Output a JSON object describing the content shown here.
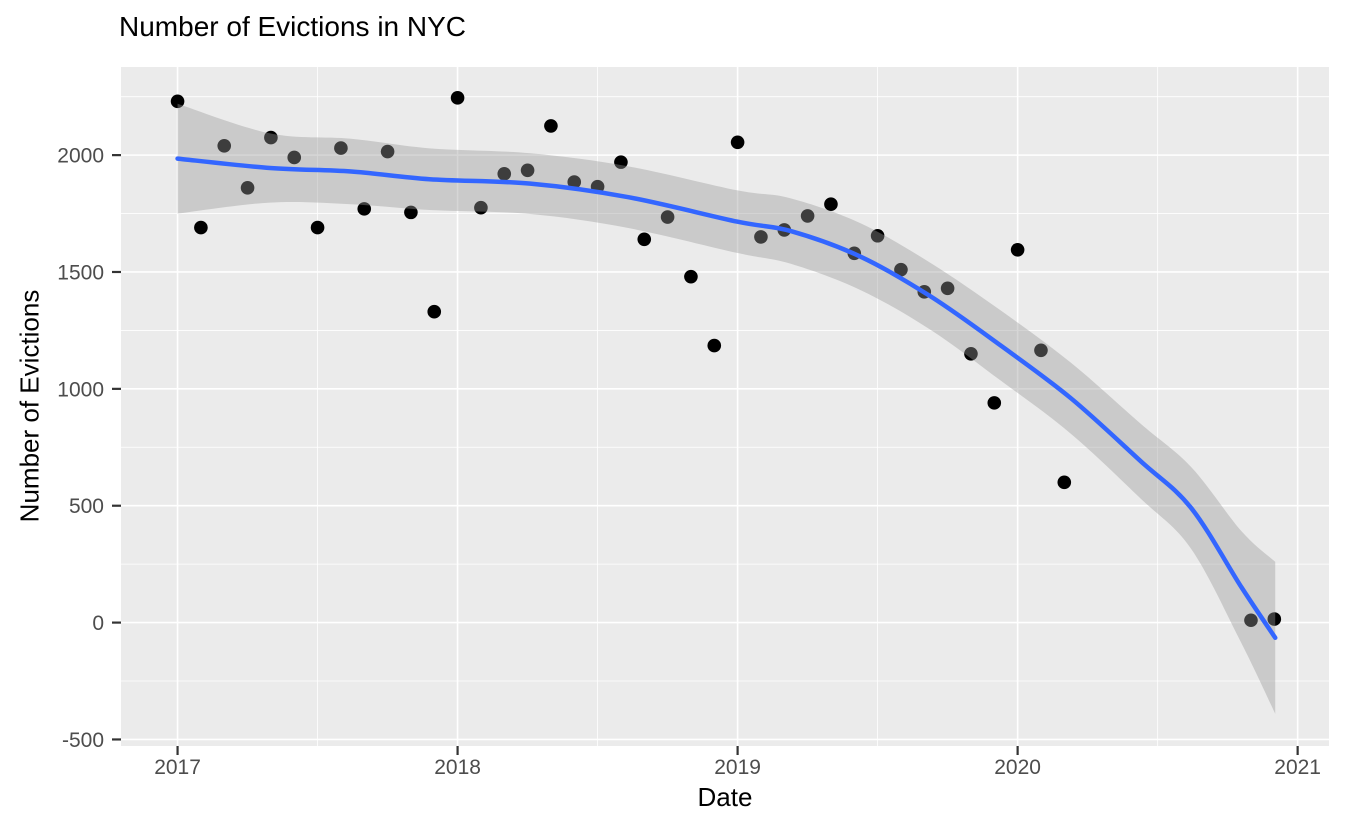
{
  "chart_data": {
    "type": "scatter",
    "title": "Number of Evictions in NYC",
    "xlabel": "Date",
    "ylabel": "Number of Evictions",
    "legend": "none",
    "grid": "white major and minor gridlines on grey panel",
    "x_ticks": [
      2017,
      2018,
      2019,
      2020,
      2021
    ],
    "x_minor_ticks": [
      2017.5,
      2018.5,
      2019.5,
      2020.5
    ],
    "y_ticks": [
      -500,
      0,
      500,
      1000,
      1500,
      2000
    ],
    "y_minor_ticks": [
      -250,
      250,
      750,
      1250,
      1750,
      2250
    ],
    "xlim": [
      2016.798,
      2021.112
    ],
    "ylim": [
      -528,
      2377
    ],
    "points": [
      {
        "date": "2017-01",
        "value": 2230
      },
      {
        "date": "2017-02",
        "value": 1690
      },
      {
        "date": "2017-03",
        "value": 2040
      },
      {
        "date": "2017-04",
        "value": 1860
      },
      {
        "date": "2017-05",
        "value": 2075
      },
      {
        "date": "2017-06",
        "value": 1990
      },
      {
        "date": "2017-07",
        "value": 1690
      },
      {
        "date": "2017-08",
        "value": 2030
      },
      {
        "date": "2017-09",
        "value": 1770
      },
      {
        "date": "2017-10",
        "value": 2015
      },
      {
        "date": "2017-11",
        "value": 1755
      },
      {
        "date": "2017-12",
        "value": 1330
      },
      {
        "date": "2018-01",
        "value": 2245
      },
      {
        "date": "2018-02",
        "value": 1775
      },
      {
        "date": "2018-03",
        "value": 1920
      },
      {
        "date": "2018-04",
        "value": 1935
      },
      {
        "date": "2018-05",
        "value": 2125
      },
      {
        "date": "2018-06",
        "value": 1885
      },
      {
        "date": "2018-07",
        "value": 1865
      },
      {
        "date": "2018-08",
        "value": 1970
      },
      {
        "date": "2018-09",
        "value": 1640
      },
      {
        "date": "2018-10",
        "value": 1735
      },
      {
        "date": "2018-11",
        "value": 1480
      },
      {
        "date": "2018-12",
        "value": 1185
      },
      {
        "date": "2019-01",
        "value": 2055
      },
      {
        "date": "2019-02",
        "value": 1650
      },
      {
        "date": "2019-03",
        "value": 1680
      },
      {
        "date": "2019-04",
        "value": 1740
      },
      {
        "date": "2019-05",
        "value": 1790
      },
      {
        "date": "2019-06",
        "value": 1580
      },
      {
        "date": "2019-07",
        "value": 1655
      },
      {
        "date": "2019-08",
        "value": 1510
      },
      {
        "date": "2019-09",
        "value": 1415
      },
      {
        "date": "2019-10",
        "value": 1430
      },
      {
        "date": "2019-11",
        "value": 1150
      },
      {
        "date": "2019-12",
        "value": 940
      },
      {
        "date": "2020-01",
        "value": 1595
      },
      {
        "date": "2020-02",
        "value": 1165
      },
      {
        "date": "2020-03",
        "value": 600
      },
      {
        "date": "2020-11",
        "value": 10
      },
      {
        "date": "2020-12",
        "value": 15
      }
    ],
    "smooth_line": [
      [
        2017.0,
        1985
      ],
      [
        2017.33,
        1945
      ],
      [
        2017.62,
        1930
      ],
      [
        2017.9,
        1897
      ],
      [
        2018.26,
        1878
      ],
      [
        2018.61,
        1820
      ],
      [
        2019.0,
        1715
      ],
      [
        2019.19,
        1675
      ],
      [
        2019.44,
        1565
      ],
      [
        2019.69,
        1395
      ],
      [
        2019.94,
        1185
      ],
      [
        2020.19,
        960
      ],
      [
        2020.44,
        690
      ],
      [
        2020.62,
        490
      ],
      [
        2020.8,
        150
      ],
      [
        2020.92,
        -65
      ]
    ],
    "confidence_ribbon": [
      [
        2017.0,
        1750,
        2220
      ],
      [
        2017.33,
        1797,
        2093
      ],
      [
        2017.62,
        1790,
        2070
      ],
      [
        2017.9,
        1765,
        2029
      ],
      [
        2018.26,
        1748,
        2008
      ],
      [
        2018.61,
        1688,
        1952
      ],
      [
        2019.0,
        1581,
        1849
      ],
      [
        2019.19,
        1535,
        1815
      ],
      [
        2019.44,
        1422,
        1708
      ],
      [
        2019.69,
        1252,
        1538
      ],
      [
        2019.94,
        1035,
        1335
      ],
      [
        2020.19,
        808,
        1112
      ],
      [
        2020.44,
        530,
        850
      ],
      [
        2020.62,
        315,
        665
      ],
      [
        2020.8,
        -90,
        390
      ],
      [
        2020.92,
        -390,
        260
      ]
    ],
    "colors": {
      "outer_background": "#FFFFFF",
      "panel_background": "#EBEBEB",
      "gridline": "#FFFFFF",
      "point": "#000000",
      "ribbon_fill": "#999999",
      "ribbon_opacity": 0.4,
      "smooth_line": "#3366FF",
      "tick_mark": "#333333",
      "tick_label": "#4D4D4D",
      "title_text": "#000000"
    }
  }
}
